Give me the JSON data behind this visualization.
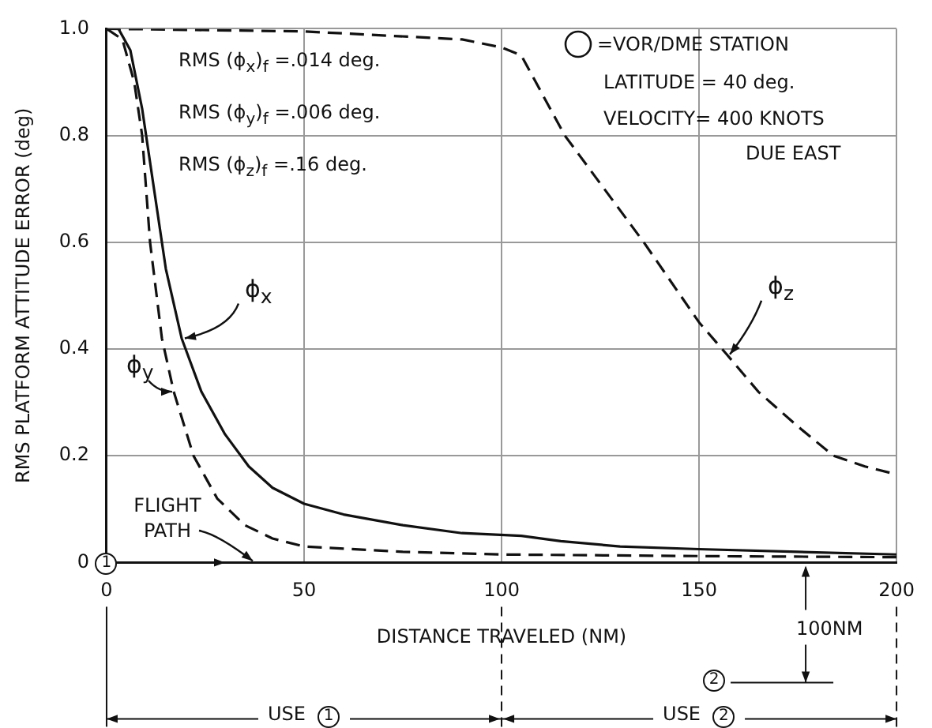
{
  "chart_data": {
    "type": "line",
    "xlabel": "DISTANCE TRAVELED (NM)",
    "ylabel": "RMS PLATFORM ATTITUDE ERROR (deg)",
    "xlim": [
      0,
      200
    ],
    "xticks": [
      0,
      50,
      100,
      150,
      200
    ],
    "ylim": [
      0,
      1
    ],
    "yticks": [
      0,
      0.2,
      0.4,
      0.6,
      0.8,
      {
        "value": 1,
        "label": "1.0"
      }
    ],
    "grid": true,
    "legend": false,
    "marker": "none",
    "series": [
      {
        "name": "ϕ$_{x}$",
        "color": "#111111",
        "line_style": "solid",
        "x": [
          0,
          3,
          6,
          9,
          12,
          15,
          19,
          24,
          30,
          36,
          42,
          50,
          60,
          75,
          90,
          105,
          115,
          130,
          150,
          175,
          200
        ],
        "values": [
          1.0,
          1.0,
          0.96,
          0.85,
          0.7,
          0.55,
          0.42,
          0.32,
          0.24,
          0.18,
          0.14,
          0.11,
          0.09,
          0.07,
          0.055,
          0.05,
          0.04,
          0.03,
          0.025,
          0.02,
          0.015
        ]
      },
      {
        "name": "ϕ$_{y}$",
        "color": "#111111",
        "line_style": "dashed",
        "x": [
          0,
          4,
          7,
          9,
          11,
          14,
          17,
          22,
          28,
          35,
          42,
          50,
          75,
          100,
          150,
          200
        ],
        "values": [
          1.0,
          0.98,
          0.9,
          0.8,
          0.6,
          0.42,
          0.32,
          0.2,
          0.12,
          0.07,
          0.045,
          0.03,
          0.02,
          0.015,
          0.012,
          0.01
        ]
      },
      {
        "name": "ϕ$_{z}$",
        "color": "#111111",
        "line_style": "dashed",
        "x": [
          0,
          50,
          90,
          100,
          105,
          116,
          136,
          150,
          157,
          165,
          175,
          184,
          192,
          200
        ],
        "values": [
          1.0,
          0.995,
          0.98,
          0.965,
          0.95,
          0.8,
          0.6,
          0.45,
          0.39,
          0.32,
          0.255,
          0.2,
          0.18,
          0.165
        ]
      }
    ],
    "annotations": [
      "RMS (ϕ$_{x}$)$_{f}$ =.014 deg.",
      "RMS (ϕ$_{y}$)$_{f}$ =.006 deg.",
      "RMS (ϕ$_{z}$)$_{f}$ =.16 deg.",
      "=VOR/DME STATION",
      "LATITUDE = 40 deg.",
      "VELOCITY= 400 KNOTS",
      "DUE EAST",
      "FLIGHT PATH",
      {
        "text": "1",
        "x": 0,
        "y": 0
      },
      "100NM",
      "2",
      "USE 1",
      "USE 2"
    ]
  }
}
